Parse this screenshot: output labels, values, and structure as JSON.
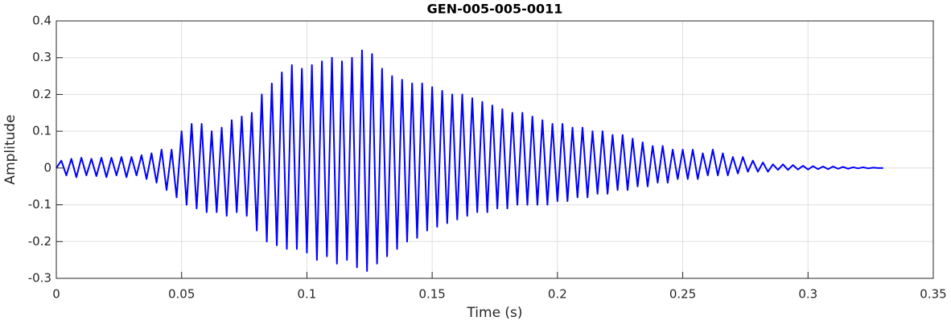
{
  "chart_data": {
    "type": "line",
    "title": "GEN-005-005-0011",
    "x_label": "Time (s)",
    "y_label": "Amplitude",
    "x": [
      0,
      0.002,
      0.004,
      0.006,
      0.008,
      0.01,
      0.012,
      0.014,
      0.016,
      0.018,
      0.02,
      0.022,
      0.024,
      0.026,
      0.028,
      0.03,
      0.032,
      0.034,
      0.036,
      0.038,
      0.04,
      0.042,
      0.044,
      0.046,
      0.048,
      0.05,
      0.052,
      0.054,
      0.056,
      0.058,
      0.06,
      0.062,
      0.064,
      0.066,
      0.068,
      0.07,
      0.072,
      0.074,
      0.076,
      0.078,
      0.08,
      0.082,
      0.084,
      0.086,
      0.088,
      0.09,
      0.092,
      0.094,
      0.096,
      0.098,
      0.1,
      0.102,
      0.104,
      0.106,
      0.108,
      0.11,
      0.112,
      0.114,
      0.116,
      0.118,
      0.12,
      0.122,
      0.124,
      0.126,
      0.128,
      0.13,
      0.132,
      0.134,
      0.136,
      0.138,
      0.14,
      0.142,
      0.144,
      0.146,
      0.148,
      0.15,
      0.152,
      0.154,
      0.156,
      0.158,
      0.16,
      0.162,
      0.164,
      0.166,
      0.168,
      0.17,
      0.172,
      0.174,
      0.176,
      0.178,
      0.18,
      0.182,
      0.184,
      0.186,
      0.188,
      0.19,
      0.192,
      0.194,
      0.196,
      0.198,
      0.2,
      0.202,
      0.204,
      0.206,
      0.208,
      0.21,
      0.212,
      0.214,
      0.216,
      0.218,
      0.22,
      0.222,
      0.224,
      0.226,
      0.228,
      0.23,
      0.232,
      0.234,
      0.236,
      0.238,
      0.24,
      0.242,
      0.244,
      0.246,
      0.248,
      0.25,
      0.252,
      0.254,
      0.256,
      0.258,
      0.26,
      0.262,
      0.264,
      0.266,
      0.268,
      0.27,
      0.272,
      0.274,
      0.276,
      0.278,
      0.28,
      0.282,
      0.284,
      0.286,
      0.288,
      0.29,
      0.292,
      0.294,
      0.296,
      0.298,
      0.3,
      0.302,
      0.304,
      0.306,
      0.308,
      0.31,
      0.312,
      0.314,
      0.316,
      0.318,
      0.32,
      0.322,
      0.324,
      0.326,
      0.328,
      0.33
    ],
    "series": [
      {
        "color": "#0000ff",
        "values": [
          0,
          0.02,
          -0.02,
          0.025,
          -0.025,
          0.028,
          -0.02,
          0.025,
          -0.022,
          0.028,
          -0.025,
          0.028,
          -0.02,
          0.03,
          -0.025,
          0.03,
          -0.02,
          0.035,
          -0.03,
          0.04,
          -0.04,
          0.05,
          -0.06,
          0.05,
          -0.08,
          0.1,
          -0.1,
          0.12,
          -0.11,
          0.12,
          -0.12,
          0.1,
          -0.12,
          0.11,
          -0.13,
          0.13,
          -0.12,
          0.14,
          -0.13,
          0.15,
          -0.17,
          0.2,
          -0.2,
          0.23,
          -0.21,
          0.26,
          -0.22,
          0.28,
          -0.22,
          0.27,
          -0.23,
          0.28,
          -0.25,
          0.29,
          -0.24,
          0.3,
          -0.26,
          0.29,
          -0.25,
          0.3,
          -0.27,
          0.32,
          -0.28,
          0.31,
          -0.26,
          0.27,
          -0.24,
          0.25,
          -0.22,
          0.24,
          -0.2,
          0.23,
          -0.19,
          0.23,
          -0.17,
          0.22,
          -0.16,
          0.21,
          -0.15,
          0.2,
          -0.14,
          0.2,
          -0.13,
          0.19,
          -0.12,
          0.18,
          -0.12,
          0.17,
          -0.11,
          0.16,
          -0.11,
          0.15,
          -0.1,
          0.15,
          -0.1,
          0.14,
          -0.1,
          0.13,
          -0.1,
          0.12,
          -0.09,
          0.12,
          -0.09,
          0.11,
          -0.08,
          0.11,
          -0.08,
          0.1,
          -0.07,
          0.1,
          -0.07,
          0.09,
          -0.06,
          0.09,
          -0.06,
          0.08,
          -0.05,
          0.07,
          -0.05,
          0.06,
          -0.04,
          0.06,
          -0.04,
          0.05,
          -0.03,
          0.05,
          -0.03,
          0.05,
          -0.03,
          0.04,
          -0.02,
          0.05,
          -0.02,
          0.04,
          -0.02,
          0.03,
          -0.015,
          0.03,
          -0.01,
          0.02,
          -0.01,
          0.015,
          -0.01,
          0.01,
          -0.005,
          0.01,
          -0.005,
          0.008,
          -0.004,
          0.006,
          -0.004,
          0.005,
          -0.003,
          0.004,
          -0.003,
          0.004,
          -0.002,
          0.003,
          -0.002,
          0.002,
          -0.001,
          0.002,
          -0.001,
          0.001,
          0,
          0
        ]
      }
    ],
    "xlim": [
      0,
      0.35
    ],
    "xticks": [
      0,
      0.05,
      0.1,
      0.15,
      0.2,
      0.25,
      0.3,
      0.35
    ],
    "ylim": [
      -0.3,
      0.4
    ],
    "yticks": [
      -0.3,
      -0.2,
      -0.1,
      0,
      0.1,
      0.2,
      0.3,
      0.4
    ],
    "grid": true
  }
}
